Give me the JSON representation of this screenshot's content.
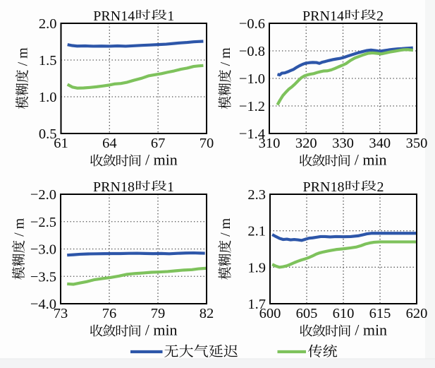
{
  "figure": {
    "type_label": "line-chart-grid",
    "background": "#fdfdfd",
    "colors": {
      "no_atmo": "#2d56a9",
      "traditional": "#7ec25c",
      "grid": "#4d4d4d",
      "frame": "#000000",
      "text": "#0a0a0a"
    }
  },
  "legend": {
    "items": [
      {
        "label": "无大气延迟",
        "color": "#2d56a9"
      },
      {
        "label": "传统",
        "color": "#7ec25c"
      }
    ]
  },
  "chart_data": [
    {
      "type": "line",
      "title": "PRN14时段1",
      "xlabel": "收敛时间 / min",
      "ylabel": "模糊度 / m",
      "xlim": [
        61,
        70
      ],
      "ylim": [
        0.5,
        2.0
      ],
      "xticks": [
        61,
        64,
        67,
        70
      ],
      "yticks": [
        0.5,
        1.0,
        1.5,
        2.0
      ],
      "xtick_labels": [
        "61",
        "64",
        "67",
        "70"
      ],
      "ytick_labels": [
        "0.5",
        "1.0",
        "1.5",
        "2.0"
      ],
      "grid": true,
      "series": [
        {
          "name": "无大气延迟",
          "x": [
            61.4,
            61.7,
            62.0,
            62.5,
            63.0,
            63.5,
            64.0,
            64.5,
            65.0,
            65.5,
            66.0,
            66.5,
            67.0,
            67.5,
            68.0,
            68.4,
            68.8,
            69.2,
            69.5,
            69.8
          ],
          "y": [
            1.71,
            1.697,
            1.69,
            1.692,
            1.688,
            1.69,
            1.688,
            1.692,
            1.688,
            1.694,
            1.7,
            1.705,
            1.71,
            1.716,
            1.726,
            1.734,
            1.74,
            1.748,
            1.752,
            1.755
          ]
        },
        {
          "name": "传统",
          "x": [
            61.4,
            61.7,
            62.0,
            62.4,
            62.8,
            63.2,
            63.6,
            64.0,
            64.3,
            64.7,
            65.1,
            65.5,
            66.0,
            66.4,
            66.8,
            67.2,
            67.6,
            68.0,
            68.4,
            68.8,
            69.2,
            69.5,
            69.8
          ],
          "y": [
            1.168,
            1.132,
            1.118,
            1.12,
            1.127,
            1.136,
            1.147,
            1.16,
            1.174,
            1.181,
            1.198,
            1.224,
            1.253,
            1.284,
            1.3,
            1.314,
            1.334,
            1.352,
            1.374,
            1.39,
            1.413,
            1.42,
            1.425
          ]
        }
      ]
    },
    {
      "type": "line",
      "title": "PRN14时段2",
      "xlabel": "收敛时间 / min",
      "ylabel": "模糊度 / m",
      "xlim": [
        310,
        350
      ],
      "ylim": [
        -1.4,
        -0.6
      ],
      "xticks": [
        310,
        320,
        330,
        340,
        350
      ],
      "yticks": [
        -1.4,
        -1.2,
        -1.0,
        -0.8,
        -0.6
      ],
      "xtick_labels": [
        "310",
        "320",
        "330",
        "340",
        "350"
      ],
      "ytick_labels": [
        "−1.4",
        "−1.2",
        "−1.0",
        "−0.8",
        "−0.6"
      ],
      "grid": true,
      "series": [
        {
          "name": "无大气延迟",
          "x": [
            312.2,
            312.8,
            313.4,
            314.2,
            315.0,
            315.7,
            316.6,
            317.4,
            318.2,
            319.0,
            319.8,
            320.8,
            321.8,
            322.8,
            323.6,
            324.4,
            325.2,
            326.2,
            327.2,
            328.2,
            329.2,
            330.4,
            331.6,
            332.8,
            334.0,
            335.2,
            336.4,
            337.6,
            338.8,
            340.0,
            341.2,
            342.4,
            343.6,
            344.8,
            346.0,
            347.2,
            348.4,
            349.0
          ],
          "y": [
            -0.97,
            -0.975,
            -0.962,
            -0.96,
            -0.952,
            -0.944,
            -0.934,
            -0.92,
            -0.908,
            -0.898,
            -0.89,
            -0.886,
            -0.884,
            -0.885,
            -0.891,
            -0.882,
            -0.877,
            -0.87,
            -0.864,
            -0.859,
            -0.855,
            -0.846,
            -0.835,
            -0.825,
            -0.815,
            -0.806,
            -0.798,
            -0.794,
            -0.798,
            -0.803,
            -0.798,
            -0.793,
            -0.789,
            -0.786,
            -0.784,
            -0.781,
            -0.779,
            -0.778
          ]
        },
        {
          "name": "传统",
          "x": [
            312.2,
            312.9,
            313.7,
            314.5,
            315.3,
            316.1,
            317.0,
            317.8,
            318.7,
            319.5,
            320.4,
            321.2,
            322.1,
            323.0,
            323.9,
            324.8,
            325.8,
            326.8,
            327.8,
            328.8,
            329.8,
            330.8,
            332.0,
            333.2,
            334.4,
            335.6,
            336.8,
            338.0,
            339.2,
            340.4,
            341.6,
            342.8,
            344.0,
            345.2,
            346.4,
            347.6,
            348.6,
            349.0
          ],
          "y": [
            -1.192,
            -1.158,
            -1.124,
            -1.1,
            -1.078,
            -1.062,
            -1.04,
            -1.018,
            -0.995,
            -0.982,
            -0.974,
            -0.969,
            -0.965,
            -0.957,
            -0.951,
            -0.946,
            -0.945,
            -0.938,
            -0.928,
            -0.916,
            -0.905,
            -0.893,
            -0.87,
            -0.852,
            -0.84,
            -0.828,
            -0.818,
            -0.815,
            -0.818,
            -0.822,
            -0.815,
            -0.808,
            -0.803,
            -0.797,
            -0.792,
            -0.791,
            -0.794,
            -0.796
          ]
        }
      ]
    },
    {
      "type": "line",
      "title": "PRN18时段1",
      "xlabel": "收敛时间 / min",
      "ylabel": "模糊度 / m",
      "xlim": [
        73,
        82
      ],
      "ylim": [
        -4.0,
        -2.0
      ],
      "xticks": [
        73,
        76,
        79,
        82
      ],
      "yticks": [
        -4.0,
        -3.5,
        -3.0,
        -2.5,
        -2.0
      ],
      "xtick_labels": [
        "73",
        "76",
        "79",
        "82"
      ],
      "ytick_labels": [
        "−4.0",
        "−3.5",
        "−3.0",
        "−2.5",
        "−2.0"
      ],
      "grid": true,
      "series": [
        {
          "name": "无大气延迟",
          "x": [
            73.4,
            73.8,
            74.2,
            74.7,
            75.2,
            75.7,
            76.2,
            76.7,
            77.2,
            77.7,
            78.2,
            78.7,
            79.2,
            79.7,
            80.2,
            80.7,
            81.2,
            81.6,
            81.9
          ],
          "y": [
            -3.112,
            -3.105,
            -3.096,
            -3.09,
            -3.088,
            -3.086,
            -3.084,
            -3.084,
            -3.08,
            -3.078,
            -3.082,
            -3.086,
            -3.082,
            -3.088,
            -3.08,
            -3.074,
            -3.072,
            -3.076,
            -3.078
          ]
        },
        {
          "name": "传统",
          "x": [
            73.4,
            73.8,
            74.2,
            74.6,
            75.1,
            75.6,
            76.1,
            76.6,
            77.1,
            77.6,
            78.1,
            78.6,
            79.1,
            79.6,
            80.1,
            80.6,
            81.1,
            81.5,
            82.0
          ],
          "y": [
            -3.638,
            -3.645,
            -3.62,
            -3.598,
            -3.56,
            -3.54,
            -3.52,
            -3.495,
            -3.462,
            -3.448,
            -3.438,
            -3.426,
            -3.42,
            -3.412,
            -3.398,
            -3.385,
            -3.378,
            -3.362,
            -3.352
          ]
        }
      ]
    },
    {
      "type": "line",
      "title": "PRN18时段2",
      "xlabel": "收敛时间 / min",
      "ylabel": "模糊度 / m",
      "xlim": [
        600,
        620
      ],
      "ylim": [
        1.7,
        2.3
      ],
      "xticks": [
        600,
        605,
        610,
        615,
        620
      ],
      "yticks": [
        1.7,
        1.9,
        2.1,
        2.3
      ],
      "xtick_labels": [
        "600",
        "605",
        "610",
        "615",
        "620"
      ],
      "ytick_labels": [
        "1.7",
        "1.9",
        "2.1",
        "2.3"
      ],
      "grid": true,
      "series": [
        {
          "name": "无大气延迟",
          "x": [
            600.3,
            600.8,
            601.3,
            601.8,
            602.3,
            602.8,
            603.3,
            603.8,
            604.3,
            604.8,
            605.3,
            605.8,
            606.3,
            606.9,
            607.5,
            608.2,
            609.0,
            610.0,
            611.0,
            612.0,
            612.6,
            613.2,
            613.8,
            615.0,
            616.5,
            618.0,
            619.0,
            620.0
          ],
          "y": [
            2.079,
            2.068,
            2.058,
            2.052,
            2.054,
            2.05,
            2.052,
            2.05,
            2.047,
            2.053,
            2.059,
            2.061,
            2.064,
            2.068,
            2.068,
            2.066,
            2.068,
            2.067,
            2.068,
            2.072,
            2.077,
            2.083,
            2.086,
            2.086,
            2.086,
            2.086,
            2.086,
            2.086
          ]
        },
        {
          "name": "传统",
          "x": [
            600.3,
            600.8,
            601.3,
            601.8,
            602.3,
            602.8,
            603.3,
            603.8,
            604.3,
            604.8,
            605.3,
            605.8,
            606.3,
            606.8,
            607.3,
            607.8,
            608.3,
            609.0,
            610.0,
            611.0,
            611.8,
            612.4,
            613.0,
            613.6,
            614.2,
            615.0,
            616.5,
            618.0,
            620.0
          ],
          "y": [
            1.916,
            1.906,
            1.9,
            1.903,
            1.908,
            1.916,
            1.925,
            1.933,
            1.94,
            1.946,
            1.953,
            1.962,
            1.972,
            1.979,
            1.984,
            1.988,
            1.992,
            1.997,
            2.001,
            2.006,
            2.011,
            2.018,
            2.027,
            2.033,
            2.037,
            2.039,
            2.039,
            2.039,
            2.039
          ]
        }
      ]
    }
  ]
}
